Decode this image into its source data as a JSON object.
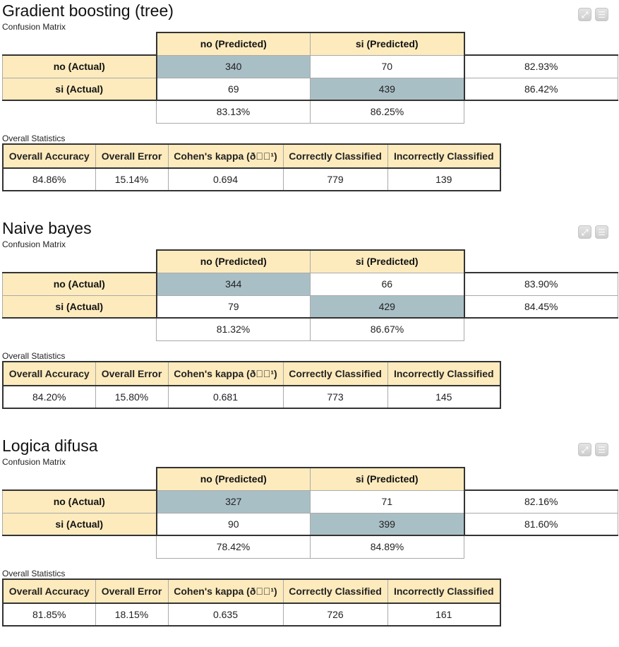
{
  "icons": {
    "expand": "expand-icon",
    "menu": "menu-icon"
  },
  "colors": {
    "header_bg": "#fdebbd",
    "diagonal_bg": "#a9bfc6",
    "border": "#333333"
  },
  "confusion_matrix_label": "Confusion Matrix",
  "overall_statistics_label": "Overall Statistics",
  "stats_headers": [
    "Overall Accuracy",
    "Overall Error",
    "Cohen's kappa (ð\u0000\u0000¹)",
    "Correctly Classified",
    "Incorrectly Classified"
  ],
  "models": [
    {
      "title": "Gradient boosting (tree)",
      "col_headers": [
        "no (Predicted)",
        "si (Predicted)"
      ],
      "rows": [
        {
          "label": "no (Actual)",
          "values": [
            "340",
            "70"
          ],
          "recall": "82.93%"
        },
        {
          "label": "si (Actual)",
          "values": [
            "69",
            "439"
          ],
          "recall": "86.42%"
        }
      ],
      "precision": [
        "83.13%",
        "86.25%"
      ],
      "stats": [
        "84.86%",
        "15.14%",
        "0.694",
        "779",
        "139"
      ]
    },
    {
      "title": "Naive bayes",
      "col_headers": [
        "no (Predicted)",
        "si (Predicted)"
      ],
      "rows": [
        {
          "label": "no (Actual)",
          "values": [
            "344",
            "66"
          ],
          "recall": "83.90%"
        },
        {
          "label": "si (Actual)",
          "values": [
            "79",
            "429"
          ],
          "recall": "84.45%"
        }
      ],
      "precision": [
        "81.32%",
        "86.67%"
      ],
      "stats": [
        "84.20%",
        "15.80%",
        "0.681",
        "773",
        "145"
      ]
    },
    {
      "title": "Logica difusa",
      "col_headers": [
        "no (Predicted)",
        "si (Predicted)"
      ],
      "rows": [
        {
          "label": "no (Actual)",
          "values": [
            "327",
            "71"
          ],
          "recall": "82.16%"
        },
        {
          "label": "si (Actual)",
          "values": [
            "90",
            "399"
          ],
          "recall": "81.60%"
        }
      ],
      "precision": [
        "78.42%",
        "84.89%"
      ],
      "stats": [
        "81.85%",
        "18.15%",
        "0.635",
        "726",
        "161"
      ]
    }
  ]
}
